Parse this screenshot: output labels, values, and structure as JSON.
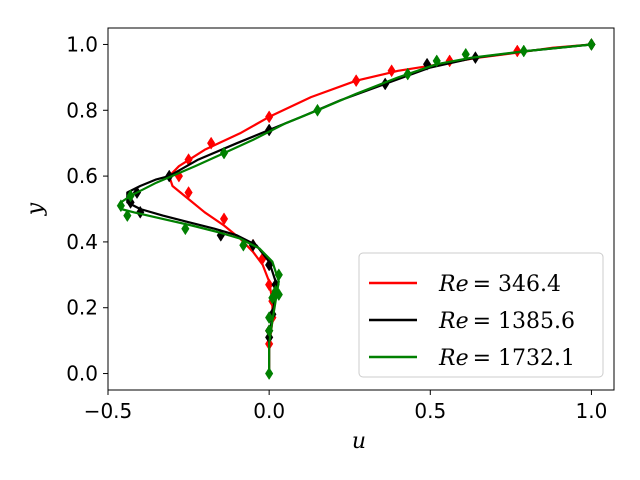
{
  "chart_data": {
    "type": "line",
    "title": "",
    "xlabel": "u",
    "ylabel": "y",
    "xlim": [
      -0.5,
      1.07
    ],
    "ylim": [
      -0.05,
      1.05
    ],
    "xticks": [
      -0.5,
      0.0,
      0.5,
      1.0
    ],
    "xtick_labels": [
      "−0.5",
      "0.0",
      "0.5",
      "1.0"
    ],
    "yticks": [
      0.0,
      0.2,
      0.4,
      0.6,
      0.8,
      1.0
    ],
    "ytick_labels": [
      "0.0",
      "0.2",
      "0.4",
      "0.6",
      "0.8",
      "1.0"
    ],
    "grid": false,
    "legend_position": "lower-right",
    "series": [
      {
        "name": "Re = 346.4",
        "legend_symbol": "Re",
        "legend_value": "= 346.4",
        "color": "#ff0000",
        "marker": "diamond",
        "x": [
          0.0,
          0.0,
          0.01,
          0.01,
          0.0,
          -0.02,
          -0.05,
          -0.09,
          -0.14,
          -0.2,
          -0.25,
          -0.3,
          -0.31,
          -0.28,
          -0.2,
          -0.09,
          0.0,
          0.13,
          0.27,
          0.4,
          0.53,
          0.65,
          0.77,
          0.88,
          1.0
        ],
        "y": [
          0.0,
          0.08,
          0.16,
          0.22,
          0.28,
          0.33,
          0.37,
          0.41,
          0.45,
          0.49,
          0.53,
          0.57,
          0.6,
          0.63,
          0.68,
          0.73,
          0.78,
          0.84,
          0.89,
          0.92,
          0.94,
          0.96,
          0.975,
          0.99,
          1.0
        ],
        "marker_x": [
          0.0,
          0.0,
          0.01,
          0.01,
          0.0,
          -0.02,
          -0.05,
          -0.14,
          -0.25,
          -0.28,
          -0.25,
          -0.18,
          0.0,
          0.27,
          0.38,
          0.56,
          0.77,
          1.0
        ],
        "marker_y": [
          0.09,
          0.13,
          0.17,
          0.22,
          0.27,
          0.35,
          0.39,
          0.47,
          0.55,
          0.6,
          0.65,
          0.7,
          0.78,
          0.89,
          0.92,
          0.95,
          0.98,
          1.0
        ]
      },
      {
        "name": "Re = 1385.6",
        "legend_symbol": "Re",
        "legend_value": "= 1385.6",
        "color": "#000000",
        "marker": "diamond",
        "x": [
          0.0,
          0.0,
          0.01,
          0.02,
          0.02,
          0.0,
          -0.04,
          -0.1,
          -0.17,
          -0.25,
          -0.33,
          -0.4,
          -0.44,
          -0.44,
          -0.4,
          -0.35,
          -0.31,
          -0.22,
          -0.1,
          0.0,
          0.1,
          0.22,
          0.36,
          0.5,
          0.64,
          0.8,
          1.0
        ],
        "y": [
          0.0,
          0.1,
          0.18,
          0.24,
          0.28,
          0.34,
          0.39,
          0.42,
          0.44,
          0.46,
          0.48,
          0.5,
          0.52,
          0.55,
          0.57,
          0.59,
          0.6,
          0.65,
          0.7,
          0.74,
          0.78,
          0.83,
          0.88,
          0.93,
          0.96,
          0.98,
          1.0
        ],
        "marker_x": [
          0.0,
          0.0,
          0.01,
          0.02,
          0.02,
          0.0,
          -0.05,
          -0.15,
          -0.4,
          -0.43,
          -0.41,
          -0.31,
          0.0,
          0.36,
          0.49,
          0.64,
          1.0
        ],
        "marker_y": [
          0.11,
          0.13,
          0.18,
          0.24,
          0.27,
          0.33,
          0.39,
          0.42,
          0.49,
          0.52,
          0.55,
          0.6,
          0.74,
          0.88,
          0.94,
          0.96,
          1.0
        ]
      },
      {
        "name": "Re = 1732.1",
        "legend_symbol": "Re",
        "legend_value": "= 1732.1",
        "color": "#008000",
        "marker": "diamond",
        "x": [
          0.0,
          0.0,
          0.01,
          0.02,
          0.03,
          0.01,
          -0.03,
          -0.09,
          -0.16,
          -0.24,
          -0.33,
          -0.42,
          -0.46,
          -0.46,
          -0.43,
          -0.35,
          -0.23,
          -0.14,
          -0.05,
          0.05,
          0.15,
          0.27,
          0.4,
          0.52,
          0.63,
          0.8,
          1.0
        ],
        "y": [
          0.0,
          0.09,
          0.16,
          0.22,
          0.28,
          0.34,
          0.38,
          0.41,
          0.43,
          0.45,
          0.47,
          0.49,
          0.5,
          0.52,
          0.54,
          0.58,
          0.63,
          0.67,
          0.71,
          0.76,
          0.8,
          0.85,
          0.9,
          0.94,
          0.96,
          0.98,
          1.0
        ],
        "marker_x": [
          0.0,
          0.0,
          0.0,
          0.01,
          0.03,
          0.02,
          0.03,
          -0.08,
          -0.26,
          -0.44,
          -0.46,
          -0.43,
          -0.14,
          0.15,
          0.43,
          0.52,
          0.61,
          0.79,
          1.0
        ],
        "marker_y": [
          0.0,
          0.13,
          0.17,
          0.23,
          0.24,
          0.25,
          0.3,
          0.39,
          0.44,
          0.48,
          0.51,
          0.54,
          0.67,
          0.8,
          0.91,
          0.95,
          0.97,
          0.98,
          1.0
        ]
      }
    ]
  }
}
